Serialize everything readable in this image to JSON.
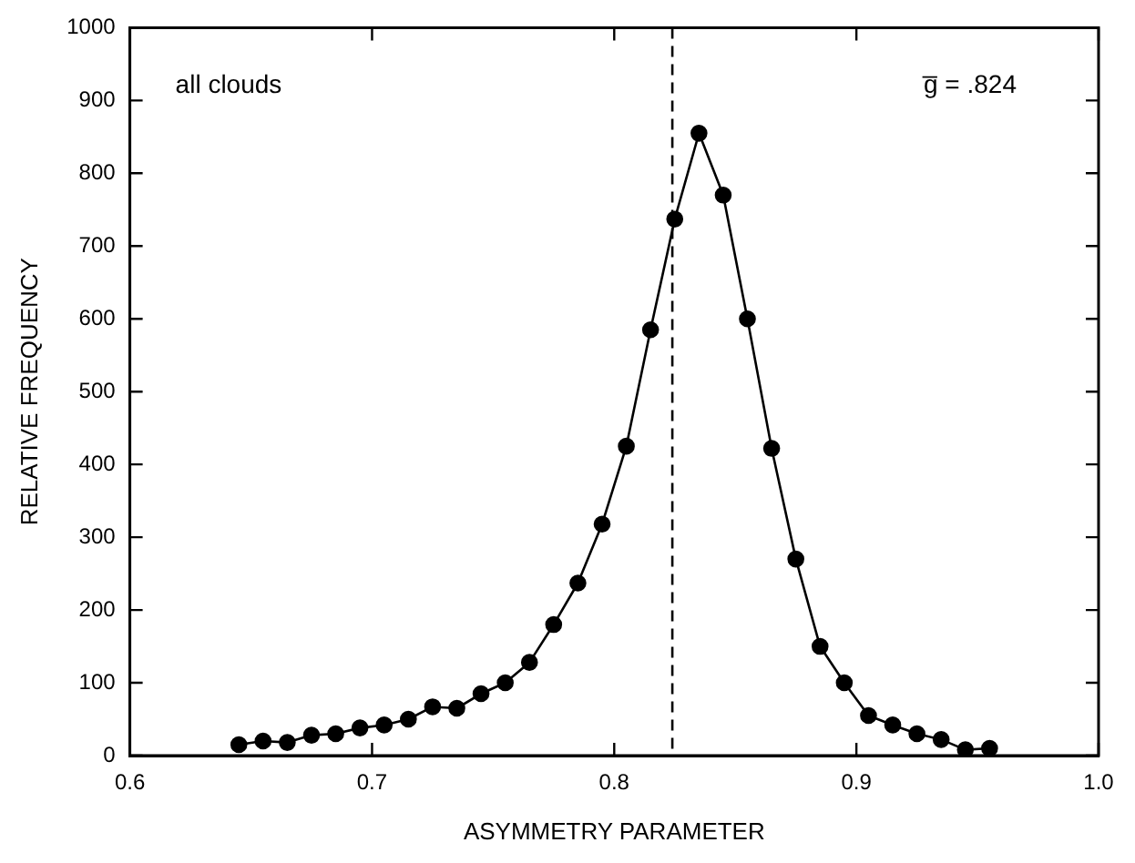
{
  "chart_data": {
    "type": "line",
    "xlabel": "ASYMMETRY PARAMETER",
    "ylabel": "RELATIVE FREQUENCY",
    "x": [
      0.645,
      0.655,
      0.665,
      0.675,
      0.685,
      0.695,
      0.705,
      0.715,
      0.725,
      0.735,
      0.745,
      0.755,
      0.765,
      0.775,
      0.785,
      0.795,
      0.805,
      0.815,
      0.825,
      0.835,
      0.845,
      0.855,
      0.865,
      0.875,
      0.885,
      0.895,
      0.905,
      0.915,
      0.925,
      0.935,
      0.945,
      0.955
    ],
    "series": [
      {
        "color": "#000000",
        "values": [
          15,
          20,
          18,
          28,
          30,
          38,
          42,
          50,
          67,
          65,
          85,
          100,
          128,
          180,
          237,
          318,
          425,
          585,
          737,
          855,
          770,
          600,
          422,
          270,
          150,
          100,
          55,
          42,
          30,
          22,
          8,
          10
        ]
      }
    ],
    "xlim": [
      0.6,
      1.0
    ],
    "xticks": [
      {
        "value": 0.6,
        "label": "0.6"
      },
      {
        "value": 0.7,
        "label": "0.7"
      },
      {
        "value": 0.8,
        "label": "0.8"
      },
      {
        "value": 0.9,
        "label": "0.9"
      },
      {
        "value": 1.0,
        "label": "1.0"
      }
    ],
    "ylim": [
      0,
      1000
    ],
    "yticks": [
      0,
      100,
      200,
      300,
      400,
      500,
      600,
      700,
      800,
      900,
      1000
    ],
    "ref_lines": [
      {
        "axis": "x",
        "value": 0.824,
        "color": "#000000",
        "line_style": "dashed"
      }
    ],
    "annotations": [
      "all clouds",
      "g̅ = .824"
    ],
    "marker": "circle",
    "line_style": "solid",
    "grid": false,
    "legend": false
  }
}
